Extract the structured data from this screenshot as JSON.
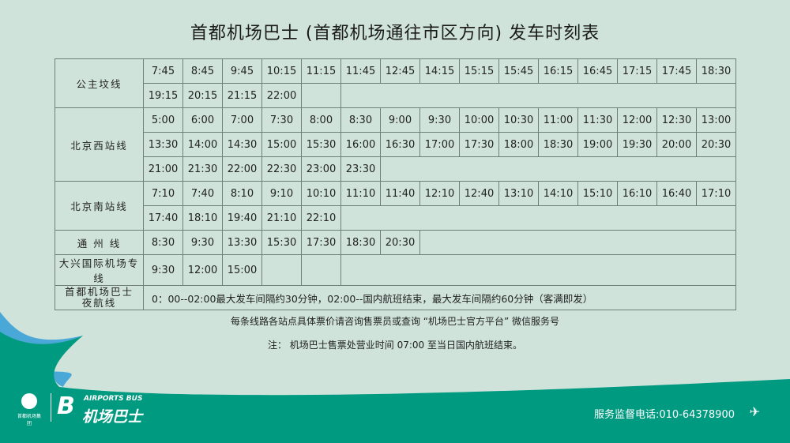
{
  "title": "首都机场巴士 (首都机场通往市区方向) 发车时刻表",
  "routes": [
    {
      "name": "公主坟线",
      "rows": [
        [
          "7:45",
          "8:45",
          "9:45",
          "10:15",
          "11:15",
          "11:45",
          "12:45",
          "14:15",
          "15:15",
          "15:45",
          "16:15",
          "16:45",
          "17:15",
          "17:45",
          "18:30"
        ],
        [
          "19:15",
          "20:15",
          "21:15",
          "22:00"
        ]
      ]
    },
    {
      "name": "北京西站线",
      "rows": [
        [
          "5:00",
          "6:00",
          "7:00",
          "7:30",
          "8:00",
          "8:30",
          "9:00",
          "9:30",
          "10:00",
          "10:30",
          "11:00",
          "11:30",
          "12:00",
          "12:30",
          "13:00"
        ],
        [
          "13:30",
          "14:00",
          "14:30",
          "15:00",
          "15:30",
          "16:00",
          "16:30",
          "17:00",
          "17:30",
          "18:00",
          "18:30",
          "19:00",
          "19:30",
          "20:00",
          "20:30"
        ],
        [
          "21:00",
          "21:30",
          "22:00",
          "22:30",
          "23:00",
          "23:30"
        ]
      ]
    },
    {
      "name": "北京南站线",
      "rows": [
        [
          "7:10",
          "7:40",
          "8:10",
          "9:10",
          "10:10",
          "11:10",
          "11:40",
          "12:10",
          "12:40",
          "13:10",
          "14:10",
          "15:10",
          "16:10",
          "16:40",
          "17:10"
        ],
        [
          "17:40",
          "18:10",
          "19:40",
          "21:10",
          "22:10"
        ]
      ]
    },
    {
      "name": "通 州 线",
      "rows": [
        [
          "8:30",
          "9:30",
          "13:30",
          "15:30",
          "17:30",
          "18:30",
          "20:30"
        ]
      ]
    },
    {
      "name": "大兴国际机场专线",
      "rows": [
        [
          "9:30",
          "12:00",
          "15:00"
        ]
      ]
    }
  ],
  "night_route": {
    "name_line1": "首都机场巴士",
    "name_line2": "夜航线",
    "note": "0：00--02:00最大发车间隔约30分钟，02:00--国内航班结束，最大发车间隔约60分钟（客满即发）"
  },
  "info_line1": "每条线路各站点具体票价请咨询售票员或查询 “机场巴士官方平台” 微信服务号",
  "info_line2": "注：  机场巴士售票处营业时间 07:00 至当日国内航班结束。",
  "footer": {
    "group_logo_text": "首都机场集团",
    "brand_en": "AIRPORTS BUS",
    "brand_cn": "机场巴士",
    "phone": "服务监督电话:010-64378900",
    "plane_icon": "plane-icon"
  },
  "colors": {
    "background": "#cfe3db",
    "footer_green": "#009a80",
    "accent_blue": "#4aa8d8"
  }
}
